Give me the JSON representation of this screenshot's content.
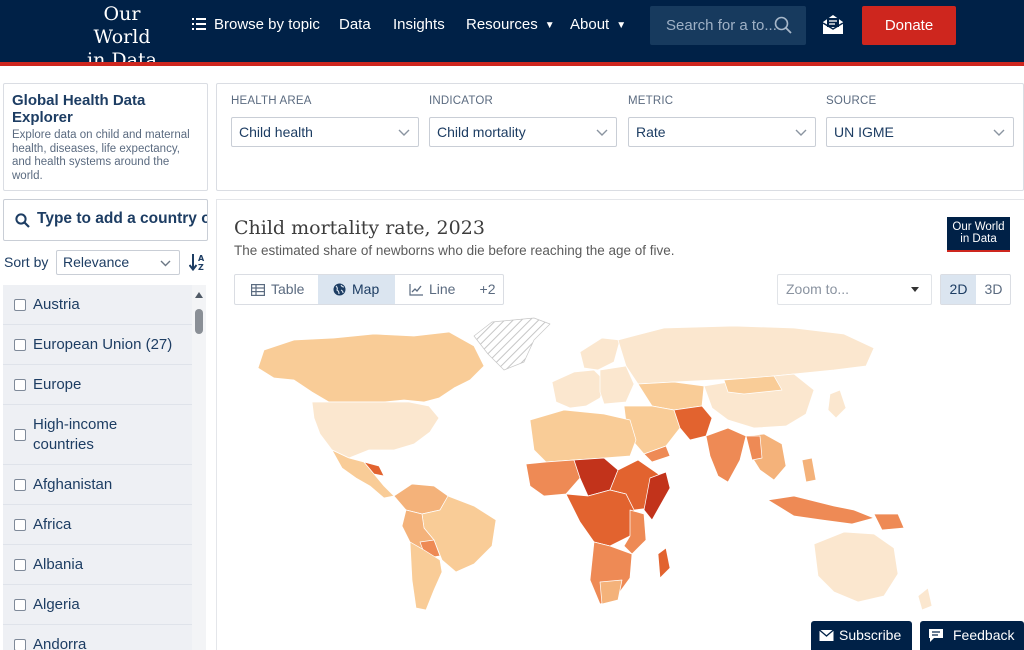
{
  "nav": {
    "logo_line1": "Our World",
    "logo_line2": "in Data",
    "items": [
      {
        "label": "Browse by topic"
      },
      {
        "label": "Data"
      },
      {
        "label": "Insights"
      },
      {
        "label": "Resources"
      },
      {
        "label": "About"
      }
    ],
    "search_placeholder": "Search for a to...",
    "donate_label": "Donate"
  },
  "explorer": {
    "title": "Global Health Data Explorer",
    "description": "Explore data on child and maternal health, diseases, life expectancy, and health systems around the world."
  },
  "country_picker": {
    "search_placeholder": "Type to add a country or region",
    "sort_label": "Sort by",
    "sort_value": "Relevance",
    "countries": [
      {
        "name": "Austria"
      },
      {
        "name": "European Union (27)"
      },
      {
        "name": "Europe"
      },
      {
        "name": "High-income countries"
      },
      {
        "name": "Afghanistan"
      },
      {
        "name": "Africa"
      },
      {
        "name": "Albania"
      },
      {
        "name": "Algeria"
      },
      {
        "name": "Andorra"
      }
    ]
  },
  "controls": [
    {
      "label": "HEALTH AREA",
      "value": "Child health"
    },
    {
      "label": "INDICATOR",
      "value": "Child mortality"
    },
    {
      "label": "METRIC",
      "value": "Rate"
    },
    {
      "label": "SOURCE",
      "value": "UN IGME"
    }
  ],
  "chart": {
    "title": "Child mortality rate, 2023",
    "subtitle": "The estimated share of newborns who die before reaching the age of five.",
    "badge_line1": "Our World",
    "badge_line2": "in Data",
    "tabs": [
      {
        "label": "Table",
        "icon": "table-icon"
      },
      {
        "label": "Map",
        "icon": "globe-icon",
        "active": true
      },
      {
        "label": "Line",
        "icon": "line-chart-icon"
      },
      {
        "label": "+2"
      }
    ],
    "zoom_placeholder": "Zoom to...",
    "dimensions": [
      {
        "label": "2D",
        "active": true
      },
      {
        "label": "3D"
      }
    ],
    "map_colors": {
      "very_low": "#fbe7cf",
      "low": "#f9cc97",
      "mid": "#f4b27a",
      "high": "#ee8a55",
      "very_high": "#e2632f",
      "extreme": "#c2331b",
      "no_data": "#e7e7e7"
    }
  },
  "floating": {
    "subscribe_label": "Subscribe",
    "feedback_label": "Feedback"
  }
}
